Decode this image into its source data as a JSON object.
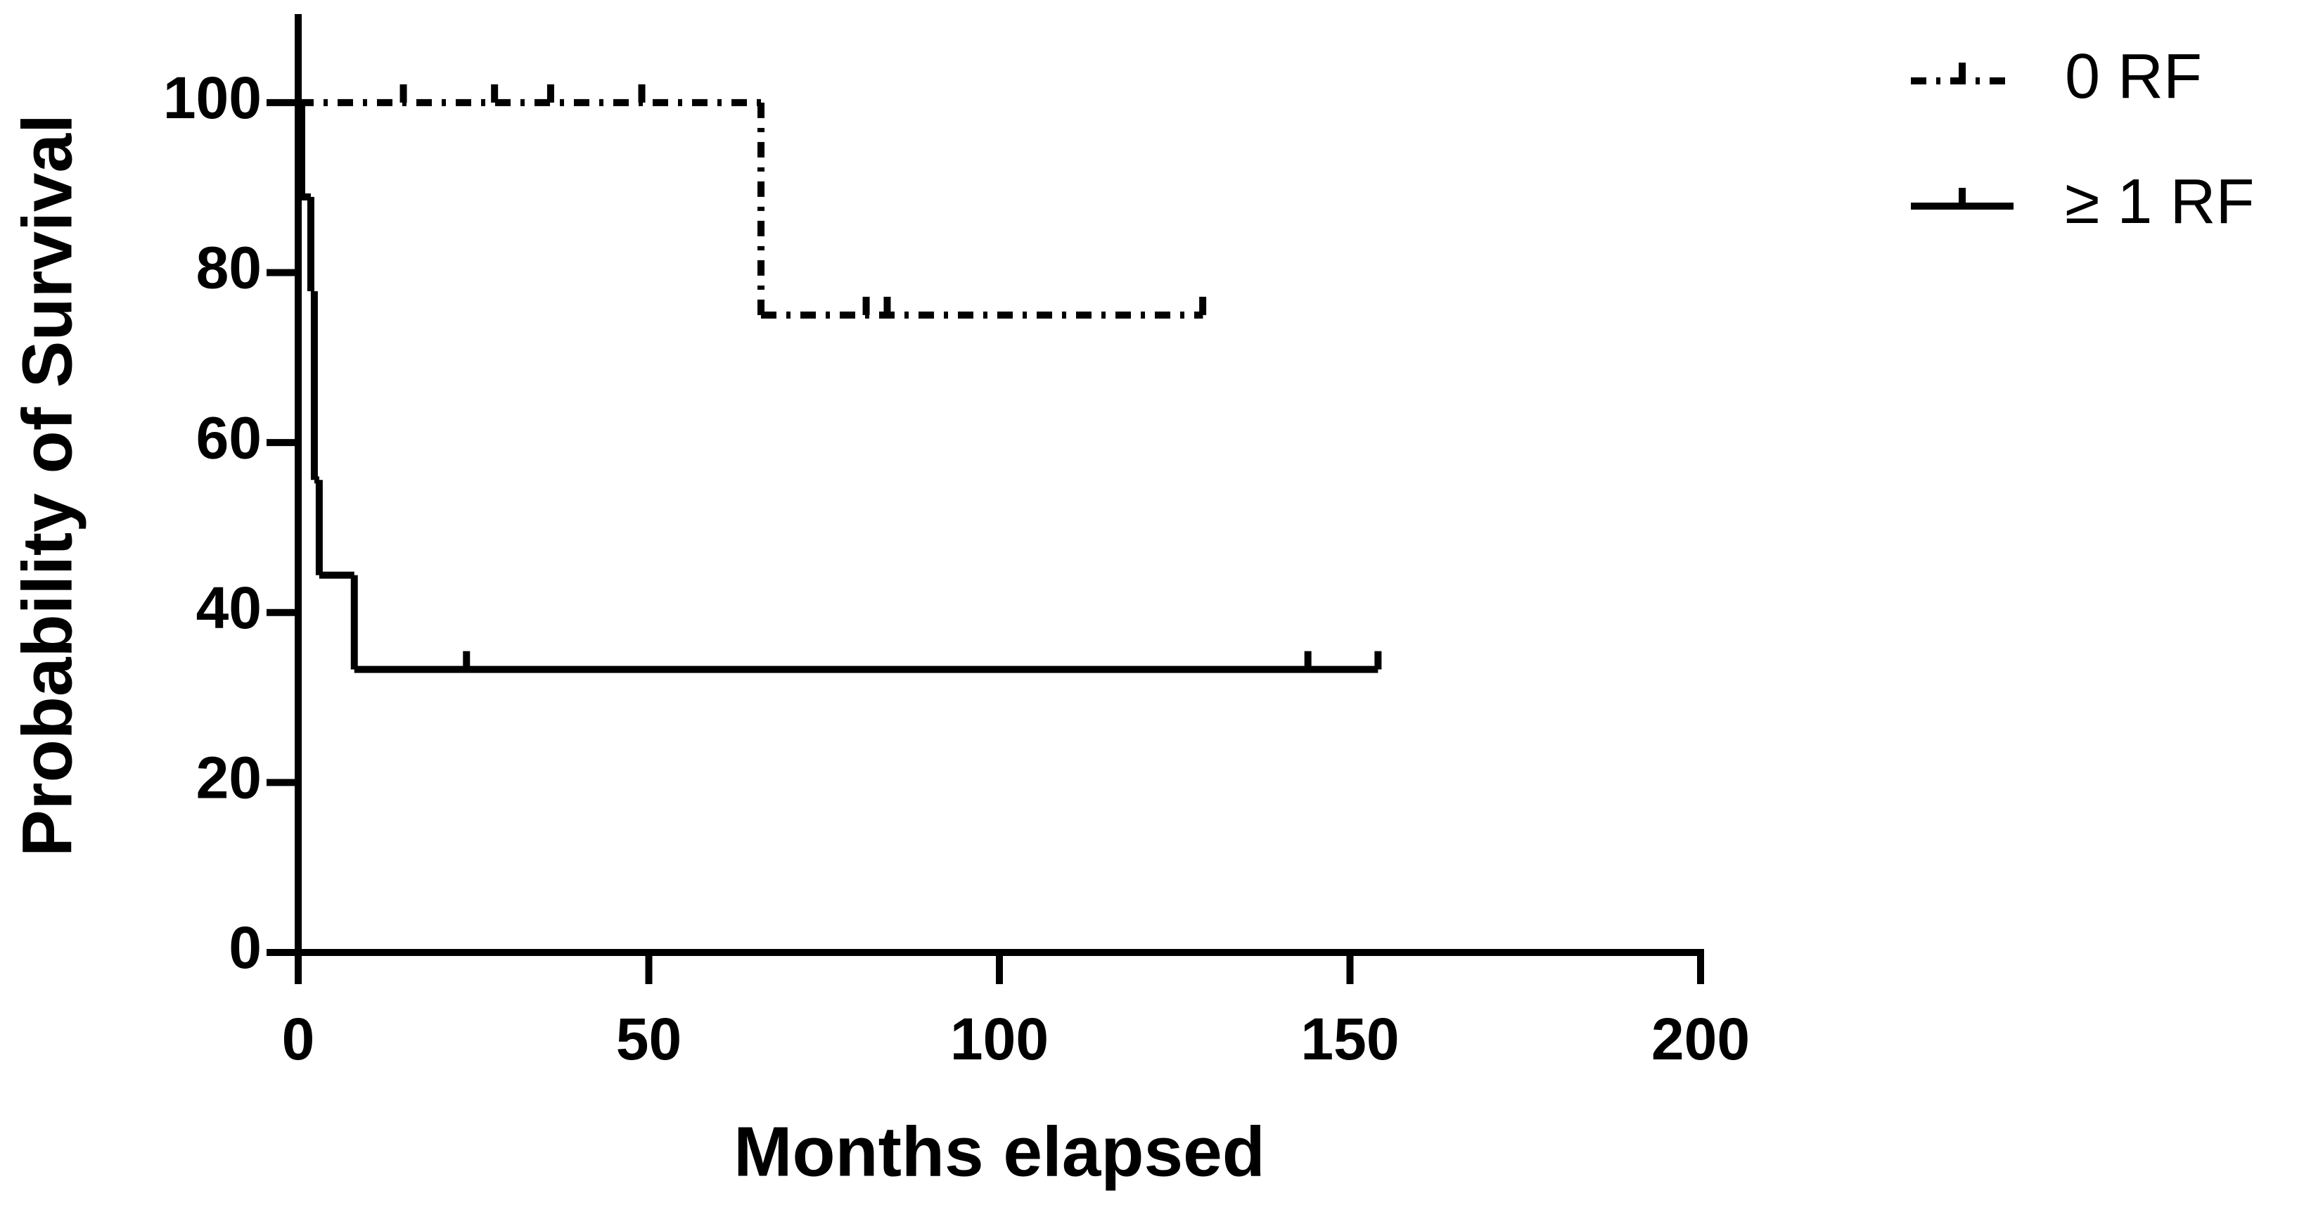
{
  "chart_data": {
    "type": "survival",
    "x_label": "Months elapsed",
    "y_label": "Probability of Survival",
    "xlim": [
      0,
      200
    ],
    "xticks": [
      0,
      50,
      100,
      150,
      200
    ],
    "ylim": [
      0,
      110
    ],
    "yticks": [
      0,
      20,
      40,
      60,
      80,
      100
    ],
    "series": [
      {
        "name": "0 RF",
        "color": "#000000",
        "dash": "dash-dot",
        "x": [
          0,
          66,
          129
        ],
        "values": [
          100,
          75,
          75
        ],
        "censor_x": [
          15,
          28,
          36,
          49,
          81,
          84,
          129
        ],
        "censor_values": [
          100,
          100,
          100,
          100,
          75,
          75,
          75
        ]
      },
      {
        "name": "≥ 1 RF",
        "color": "#000000",
        "dash": "solid",
        "x": [
          0,
          0.5,
          1.8,
          2.3,
          3,
          8,
          154
        ],
        "values": [
          100,
          88.9,
          77.8,
          55.6,
          44.4,
          33.3,
          33.3
        ],
        "censor_x": [
          24,
          144,
          154
        ],
        "censor_values": [
          33.3,
          33.3,
          33.3
        ]
      }
    ]
  }
}
